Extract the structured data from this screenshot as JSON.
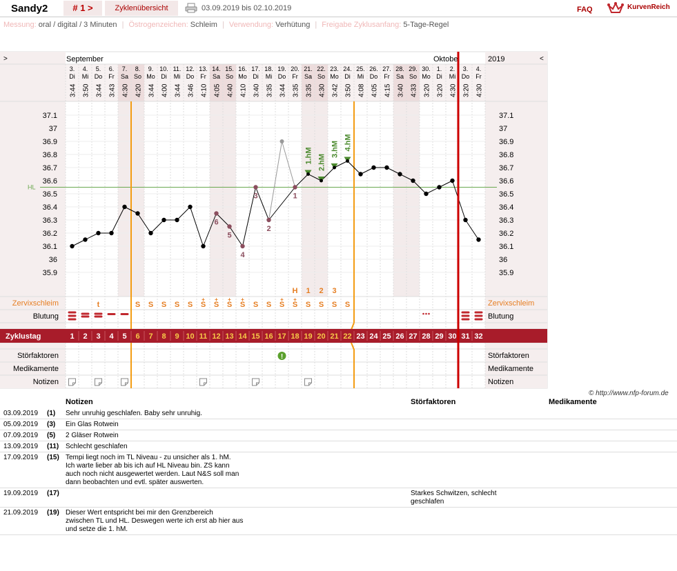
{
  "header": {
    "username": "Sandy2",
    "cycle_nav": "# 1 >",
    "overview_label": "Zyklenübersicht",
    "date_range": "03.09.2019 bis 02.10.2019",
    "faq": "FAQ",
    "logo_text": "KurvenReich"
  },
  "info": [
    {
      "label": "Messung:",
      "value": "oral / digital / 3 Minuten"
    },
    {
      "label": "Östrogenzeichen:",
      "value": "Schleim"
    },
    {
      "label": "Verwendung:",
      "value": "Verhütung"
    },
    {
      "label": "Freigabe Zyklusanfang:",
      "value": "5-Tage-Regel"
    }
  ],
  "chart_data": {
    "type": "line",
    "nav_left": ">",
    "nav_right": "<",
    "month_left": "September",
    "month_right": "Oktobe",
    "year": "2019",
    "dates": [
      "3.",
      "4.",
      "5.",
      "6.",
      "7.",
      "8.",
      "9.",
      "10.",
      "11.",
      "12.",
      "13.",
      "14.",
      "15.",
      "16.",
      "17.",
      "18.",
      "19.",
      "20.",
      "21.",
      "22.",
      "23.",
      "24.",
      "25.",
      "26.",
      "27.",
      "28.",
      "29.",
      "30.",
      "1.",
      "2.",
      "3.",
      "4."
    ],
    "weekdays": [
      "Di",
      "Mi",
      "Do",
      "Fr",
      "Sa",
      "So",
      "Mo",
      "Di",
      "Mi",
      "Do",
      "Fr",
      "Sa",
      "So",
      "Mo",
      "Di",
      "Mi",
      "Do",
      "Fr",
      "Sa",
      "So",
      "Mo",
      "Di",
      "Mi",
      "Do",
      "Fr",
      "Sa",
      "So",
      "Mo",
      "Di",
      "Mi",
      "Do",
      "Fr"
    ],
    "times": [
      "3:44",
      "3:50",
      "3:44",
      "3:43",
      "4:30",
      "4:20",
      "3:44",
      "4:00",
      "3:44",
      "3:46",
      "4:10",
      "4:05",
      "4:40",
      "4:10",
      "3:40",
      "3:35",
      "3:44",
      "3:35",
      "3:35",
      "4:30",
      "3:42",
      "3:50",
      "4:08",
      "4:05",
      "4:15",
      "3:40",
      "4:33",
      "3:20",
      "3:20",
      "4:30",
      "3:20",
      "4:30"
    ],
    "weekend_days": [
      5,
      6,
      12,
      13,
      19,
      20,
      26,
      27
    ],
    "cycle_days": [
      "1",
      "2",
      "3",
      "4",
      "5",
      "6",
      "7",
      "8",
      "9",
      "10",
      "11",
      "12",
      "13",
      "14",
      "15",
      "16",
      "17",
      "18",
      "19",
      "20",
      "21",
      "22",
      "23",
      "24",
      "25",
      "26",
      "27",
      "28",
      "29",
      "30",
      "31",
      "32"
    ],
    "temperatures": [
      36.1,
      36.15,
      36.2,
      36.2,
      36.4,
      36.35,
      36.2,
      36.3,
      36.3,
      36.4,
      36.1,
      36.35,
      36.25,
      36.1,
      36.55,
      36.3,
      36.9,
      36.55,
      36.65,
      36.6,
      36.7,
      36.75,
      36.65,
      36.7,
      36.7,
      36.65,
      36.6,
      36.5,
      36.55,
      36.6,
      36.3,
      36.15
    ],
    "excluded_points": [
      17
    ],
    "marked_points": [
      12,
      13,
      14,
      15,
      16,
      18
    ],
    "count_labels": [
      {
        "day": 12,
        "text": "6"
      },
      {
        "day": 13,
        "text": "5"
      },
      {
        "day": 14,
        "text": "4"
      },
      {
        "day": 15,
        "text": "3"
      },
      {
        "day": 16,
        "text": "2"
      },
      {
        "day": 18,
        "text": "1"
      }
    ],
    "hm_labels": [
      {
        "day": 19,
        "text": "1.hM"
      },
      {
        "day": 20,
        "text": "2.hM"
      },
      {
        "day": 21,
        "text": "3.hM"
      },
      {
        "day": 22,
        "text": "4.hM"
      }
    ],
    "peak_labels": [
      {
        "day": 18,
        "text": "H"
      },
      {
        "day": 19,
        "text": "1"
      },
      {
        "day": 20,
        "text": "2"
      },
      {
        "day": 21,
        "text": "3"
      }
    ],
    "ylim": [
      35.9,
      37.1
    ],
    "yticks": [
      "37.1",
      "37",
      "36.9",
      "36.8",
      "36.7",
      "36.6",
      "36.5",
      "36.4",
      "36.3",
      "36.2",
      "36.1",
      "36",
      "35.9"
    ],
    "hl_value": 36.55,
    "hl_label": "HL",
    "mucus_label": "Zervixschleim",
    "mucus": [
      "",
      "",
      "t",
      "",
      "",
      "S",
      "S",
      "S",
      "S",
      "S",
      "S+",
      "S+",
      "S+",
      "S+",
      "S",
      "S",
      "S+",
      "S+",
      "S",
      "S",
      "S",
      "S",
      "",
      "",
      "",
      "",
      "",
      "",
      "",
      "",
      "",
      ""
    ],
    "bleeding_label": "Blutung",
    "bleeding": [
      "heavy",
      "medium",
      "medium",
      "light",
      "light",
      "",
      "",
      "",
      "",
      "",
      "",
      "",
      "",
      "",
      "",
      "",
      "",
      "",
      "",
      "",
      "",
      "",
      "",
      "",
      "",
      "",
      "",
      "spot",
      "",
      "",
      "heavy",
      "heavy"
    ],
    "cycle_label": "Zyklustag",
    "disturb_label": "Störfaktoren",
    "disturb_days": [
      17
    ],
    "med_label": "Medikamente",
    "notes_label": "Notizen",
    "notes_days": [
      1,
      3,
      5,
      11,
      15,
      19
    ],
    "colors": {
      "curve": "#000000",
      "marker": "#8b4e5e",
      "hm": "#4b8a2e",
      "hl": "#6aa84f",
      "evaluation": "#f39c12",
      "cycle_bar": "#a81c2a",
      "cycle_start": "#cc0000",
      "mucus": "#e67e22",
      "bleeding": "#c0272d"
    }
  },
  "credit": "© http://www.nfp-forum.de",
  "notes_table": {
    "headers": {
      "notes": "Notizen",
      "disturb": "Störfaktoren",
      "meds": "Medikamente"
    },
    "rows": [
      {
        "date": "03.09.2019",
        "day": "(1)",
        "note": "Sehr unruhig geschlafen. Baby sehr unruhig.",
        "disturb": ""
      },
      {
        "date": "05.09.2019",
        "day": "(3)",
        "note": "Ein Glas Rotwein",
        "disturb": ""
      },
      {
        "date": "07.09.2019",
        "day": "(5)",
        "note": "2 Gläser Rotwein",
        "disturb": ""
      },
      {
        "date": "13.09.2019",
        "day": "(11)",
        "note": "Schlecht geschlafen",
        "disturb": ""
      },
      {
        "date": "17.09.2019",
        "day": "(15)",
        "note": "Tempi liegt noch im TL Niveau - zu unsicher als 1. hM.\nIch warte lieber ab bis ich auf HL Niveau bin. ZS kann\nauch noch nicht ausgewertet werden. Laut N&S soll man\ndann beobachten und evtl. später auswerten.",
        "disturb": ""
      },
      {
        "date": "19.09.2019",
        "day": "(17)",
        "note": "",
        "disturb": "Starkes Schwitzen, schlecht\ngeschlafen"
      },
      {
        "date": "21.09.2019",
        "day": "(19)",
        "note": "Dieser Wert entspricht bei mir den Grenzbereich\nzwischen TL und HL. Deswegen werte ich erst ab hier aus\nund setze die 1. hM.",
        "disturb": ""
      }
    ]
  }
}
